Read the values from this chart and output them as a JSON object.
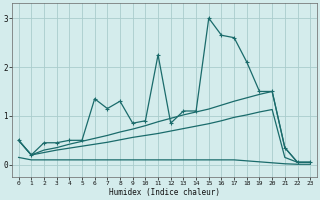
{
  "xlabel": "Humidex (Indice chaleur)",
  "background_color": "#d4ecec",
  "grid_color": "#aacccc",
  "line_color": "#1a6b6b",
  "xlim": [
    -0.5,
    23.5
  ],
  "ylim": [
    -0.25,
    3.3
  ],
  "yticks": [
    0,
    1,
    2,
    3
  ],
  "xticks": [
    0,
    1,
    2,
    3,
    4,
    5,
    6,
    7,
    8,
    9,
    10,
    11,
    12,
    13,
    14,
    15,
    16,
    17,
    18,
    19,
    20,
    21,
    22,
    23
  ],
  "s1_x": [
    0,
    1,
    2,
    3,
    4,
    5,
    6,
    7,
    8,
    9,
    10,
    11,
    12,
    13,
    14,
    15,
    16,
    17,
    18,
    19,
    20,
    21,
    22,
    23
  ],
  "s1_y": [
    0.5,
    0.2,
    0.45,
    0.45,
    0.5,
    0.5,
    1.35,
    1.15,
    1.3,
    0.85,
    0.9,
    2.25,
    0.85,
    1.1,
    1.1,
    3.0,
    2.65,
    2.6,
    2.1,
    1.5,
    1.5,
    0.35,
    0.05,
    0.05
  ],
  "s2_x": [
    0,
    1,
    2,
    3,
    4,
    5,
    6,
    7,
    8,
    9,
    10,
    11,
    12,
    13,
    14,
    15,
    16,
    17,
    18,
    19,
    20,
    21,
    22,
    23
  ],
  "s2_y": [
    0.5,
    0.2,
    0.3,
    0.35,
    0.42,
    0.48,
    0.54,
    0.6,
    0.67,
    0.73,
    0.8,
    0.88,
    0.95,
    1.02,
    1.08,
    1.14,
    1.22,
    1.3,
    1.37,
    1.44,
    1.5,
    0.35,
    0.05,
    0.05
  ],
  "s3_x": [
    0,
    1,
    2,
    3,
    4,
    5,
    6,
    7,
    8,
    9,
    10,
    11,
    12,
    13,
    14,
    15,
    16,
    17,
    18,
    19,
    20,
    21,
    22,
    23
  ],
  "s3_y": [
    0.5,
    0.2,
    0.25,
    0.3,
    0.34,
    0.38,
    0.42,
    0.46,
    0.51,
    0.56,
    0.6,
    0.64,
    0.69,
    0.74,
    0.79,
    0.84,
    0.9,
    0.97,
    1.02,
    1.08,
    1.13,
    0.15,
    0.05,
    0.05
  ],
  "s4_x": [
    0,
    1,
    2,
    3,
    4,
    5,
    6,
    7,
    8,
    9,
    10,
    11,
    12,
    13,
    14,
    15,
    16,
    17,
    18,
    19,
    20,
    21,
    22,
    23
  ],
  "s4_y": [
    0.15,
    0.1,
    0.1,
    0.1,
    0.1,
    0.1,
    0.1,
    0.1,
    0.1,
    0.1,
    0.1,
    0.1,
    0.1,
    0.1,
    0.1,
    0.1,
    0.1,
    0.1,
    0.08,
    0.06,
    0.04,
    0.02,
    0.01,
    0.01
  ]
}
